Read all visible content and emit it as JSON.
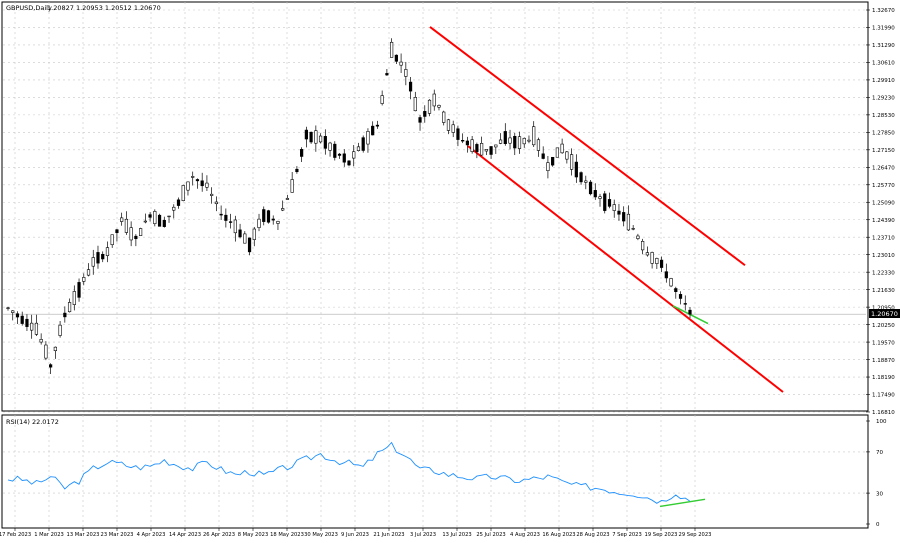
{
  "chart_data": [
    {
      "type": "candlestick",
      "symbol_header": "GBPUSD,Daily",
      "ohlc_header": "1.20827 1.20953 1.20512 1.20670",
      "current_price_label": "1.20670",
      "ylim": [
        1.1681,
        1.3267
      ],
      "y_ticks": [
        "1.32670",
        "1.31990",
        "1.31290",
        "1.30610",
        "1.29910",
        "1.29230",
        "1.28530",
        "1.27850",
        "1.27150",
        "1.26470",
        "1.25770",
        "1.25090",
        "1.24390",
        "1.23710",
        "1.23010",
        "1.22330",
        "1.21630",
        "1.20950",
        "1.20250",
        "1.19570",
        "1.18870",
        "1.18190",
        "1.17490",
        "1.16810"
      ],
      "x_ticks": [
        "17 Feb 2023",
        "1 Mar 2023",
        "13 Mar 2023",
        "23 Mar 2023",
        "4 Apr 2023",
        "14 Apr 2023",
        "26 Apr 2023",
        "8 May 2023",
        "18 May 2023",
        "30 May 2023",
        "9 Jun 2023",
        "21 Jun 2023",
        "3 Jul 2023",
        "13 Jul 2023",
        "25 Jul 2023",
        "4 Aug 2023",
        "16 Aug 2023",
        "28 Aug 2023",
        "7 Sep 2023",
        "19 Sep 2023",
        "29 Sep 2023"
      ],
      "grid": true,
      "anchors": [
        [
          1.208,
          1.21
        ],
        [
          1.204,
          1.206
        ],
        [
          1.2,
          1.202
        ],
        [
          1.185,
          1.188
        ],
        [
          1.205,
          1.208
        ],
        [
          1.215,
          1.218
        ],
        [
          1.225,
          1.229
        ],
        [
          1.23,
          1.233
        ],
        [
          1.242,
          1.245
        ],
        [
          1.235,
          1.238
        ],
        [
          1.245,
          1.247
        ],
        [
          1.242,
          1.244
        ],
        [
          1.25,
          1.251
        ],
        [
          1.26,
          1.262
        ],
        [
          1.256,
          1.258
        ],
        [
          1.245,
          1.248
        ],
        [
          1.24,
          1.243
        ],
        [
          1.233,
          1.235
        ],
        [
          1.245,
          1.247
        ],
        [
          1.242,
          1.245
        ],
        [
          1.255,
          1.259
        ],
        [
          1.275,
          1.279
        ],
        [
          1.275,
          1.277
        ],
        [
          1.27,
          1.272
        ],
        [
          1.265,
          1.268
        ],
        [
          1.273,
          1.275
        ],
        [
          1.28,
          1.283
        ],
        [
          1.31,
          1.312
        ],
        [
          1.3,
          1.305
        ],
        [
          1.282,
          1.285
        ],
        [
          1.29,
          1.293
        ],
        [
          1.28,
          1.283
        ],
        [
          1.274,
          1.277
        ],
        [
          1.27,
          1.274
        ],
        [
          1.27,
          1.273
        ],
        [
          1.275,
          1.277
        ],
        [
          1.272,
          1.276
        ],
        [
          1.275,
          1.278
        ],
        [
          1.264,
          1.267
        ],
        [
          1.27,
          1.274
        ],
        [
          1.263,
          1.265
        ],
        [
          1.255,
          1.257
        ],
        [
          1.25,
          1.253
        ],
        [
          1.245,
          1.249
        ],
        [
          1.24,
          1.241
        ],
        [
          1.23,
          1.232
        ],
        [
          1.227,
          1.225
        ],
        [
          1.215,
          1.217
        ],
        [
          1.2087,
          1.2067
        ]
      ],
      "channel_upper": [
        [
          1.32
        ],
        [
          1.226
        ]
      ],
      "channel_lower": [
        [
          1.273
        ],
        [
          1.176
        ]
      ],
      "divergence_price": [
        [
          1.21
        ],
        [
          1.203
        ]
      ]
    },
    {
      "type": "line",
      "title": "RSI(14) 22.0172",
      "ylim": [
        0,
        100
      ],
      "y_ticks": [
        "100",
        "70",
        "30",
        "0"
      ],
      "levels": [
        70,
        30
      ],
      "anchors": [
        44,
        43,
        39,
        46,
        35,
        42,
        54,
        60,
        58,
        55,
        56,
        62,
        57,
        54,
        60,
        53,
        48,
        51,
        47,
        52,
        57,
        63,
        68,
        62,
        59,
        55,
        68,
        76,
        66,
        53,
        52,
        48,
        46,
        44,
        46,
        44,
        42,
        44,
        46,
        41,
        37,
        36,
        34,
        31,
        30,
        26,
        22,
        31,
        22
      ],
      "divergence_rsi": [
        [
          17
        ],
        [
          24
        ]
      ]
    }
  ],
  "colors": {
    "price_line": "#000000",
    "channel": "#ff0000",
    "divergence": "#33cc33",
    "rsi_line": "#1e90ff",
    "grid": "#c8c8c8",
    "axis_text": "#000000",
    "price_box_bg": "#000000",
    "price_box_text": "#ffffff"
  }
}
